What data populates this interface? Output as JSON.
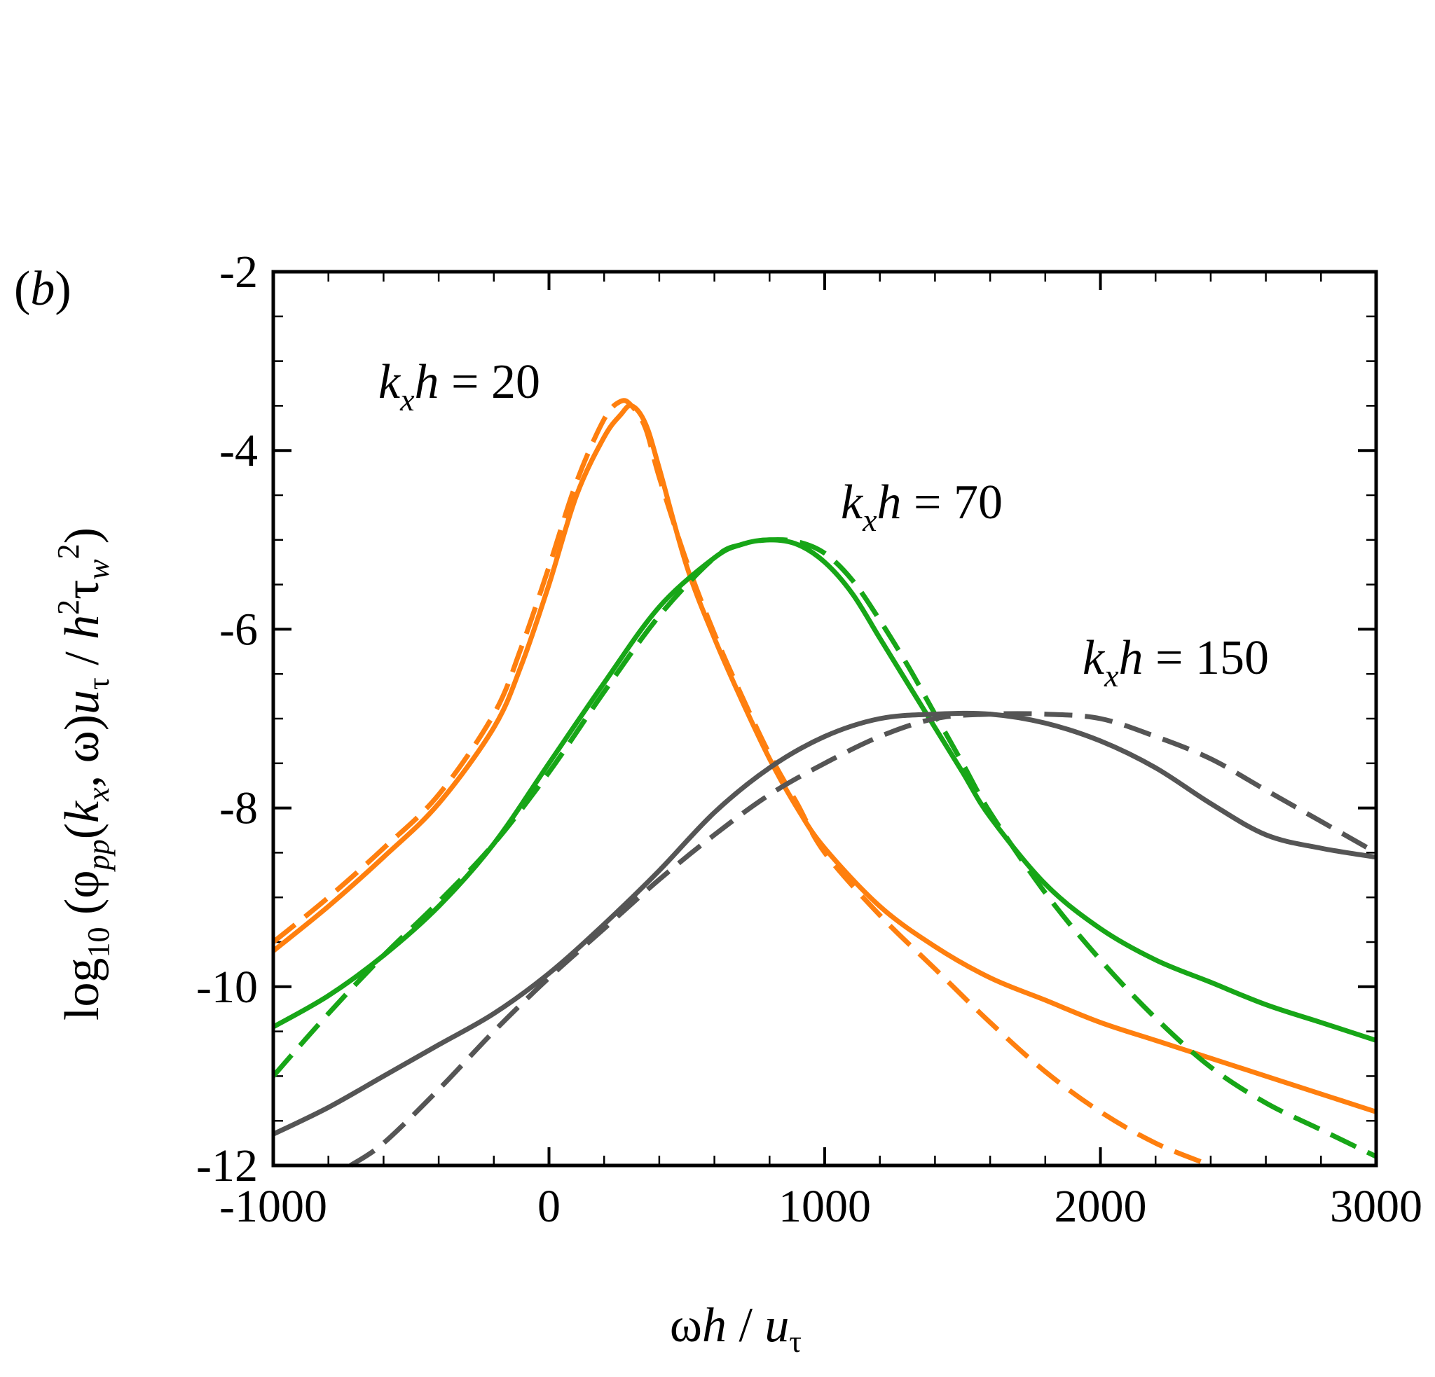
{
  "panel_label": {
    "open": "(",
    "letter": "b",
    "close": ")"
  },
  "colors": {
    "orange": "#ff7f0e",
    "green": "#17a617",
    "gray": "#555555"
  },
  "chart_data": {
    "type": "line",
    "title": "",
    "xlabel": {
      "omega": "ω",
      "h": "h",
      "slash": " / ",
      "u": "u",
      "tau": "τ"
    },
    "ylabel": {
      "log": "log",
      "base": "10",
      "open": " (",
      "phi": "φ",
      "pp": "pp",
      "mid": "(",
      "k": "k",
      "x": "x",
      "args": ", ω)",
      "u": "u",
      "tau": "τ",
      "slash": " / ",
      "h": "h",
      "two": "2",
      "tau2": "τ",
      "w": "w",
      "two2": "2",
      "close": ")"
    },
    "xlim": [
      -1000,
      3000
    ],
    "ylim": [
      -12,
      -2
    ],
    "xticks": [
      -1000,
      0,
      1000,
      2000,
      3000
    ],
    "xtick_labels": [
      "-1000",
      "0",
      "1000",
      "2000",
      "3000"
    ],
    "yticks": [
      -2,
      -4,
      -6,
      -8,
      -10,
      -12
    ],
    "ytick_labels": [
      "-2",
      "-4",
      "-6",
      "-8",
      "-10",
      "-12"
    ],
    "annotations": [
      {
        "k": "k",
        "x": "x",
        "h": "h",
        "text": " = 20",
        "color": "orange"
      },
      {
        "k": "k",
        "x": "x",
        "h": "h",
        "text": " = 70",
        "color": "green"
      },
      {
        "k": "k",
        "x": "x",
        "h": "h",
        "text": " = 150",
        "color": "gray"
      }
    ],
    "series": [
      {
        "name": "kx h = 20 (solid)",
        "style": "solid",
        "color": "#ff7f0e",
        "x": [
          -1000,
          -800,
          -600,
          -400,
          -200,
          -100,
          0,
          100,
          200,
          260,
          300,
          350,
          400,
          500,
          600,
          700,
          800,
          900,
          1000,
          1200,
          1400,
          1600,
          1800,
          2000,
          2200,
          2400,
          2600,
          2800,
          3000
        ],
        "y": [
          -9.6,
          -9.1,
          -8.55,
          -7.95,
          -7.1,
          -6.4,
          -5.5,
          -4.5,
          -3.85,
          -3.6,
          -3.5,
          -3.7,
          -4.2,
          -5.3,
          -6.1,
          -6.8,
          -7.45,
          -8.0,
          -8.45,
          -9.1,
          -9.55,
          -9.9,
          -10.15,
          -10.4,
          -10.6,
          -10.8,
          -11.0,
          -11.2,
          -11.4
        ]
      },
      {
        "name": "kx h = 20 (dashed)",
        "style": "dashed",
        "color": "#ff7f0e",
        "x": [
          -1000,
          -800,
          -600,
          -400,
          -200,
          -100,
          0,
          100,
          200,
          260,
          300,
          350,
          400,
          500,
          600,
          700,
          800,
          900,
          1000,
          1200,
          1400,
          1600,
          1800,
          2000,
          2200,
          2400
        ],
        "y": [
          -9.5,
          -9.0,
          -8.45,
          -7.85,
          -6.95,
          -6.2,
          -5.3,
          -4.35,
          -3.65,
          -3.45,
          -3.5,
          -3.75,
          -4.3,
          -5.25,
          -6.05,
          -6.75,
          -7.4,
          -7.95,
          -8.5,
          -9.2,
          -9.8,
          -10.4,
          -10.95,
          -11.4,
          -11.75,
          -12.0
        ]
      },
      {
        "name": "kx h = 70 (solid)",
        "style": "solid",
        "color": "#17a617",
        "x": [
          -1000,
          -800,
          -600,
          -400,
          -200,
          0,
          200,
          400,
          600,
          700,
          800,
          900,
          1000,
          1100,
          1200,
          1300,
          1400,
          1500,
          1600,
          1800,
          2000,
          2200,
          2400,
          2600,
          2800,
          3000
        ],
        "y": [
          -10.45,
          -10.1,
          -9.65,
          -9.1,
          -8.4,
          -7.5,
          -6.6,
          -5.75,
          -5.2,
          -5.05,
          -5.0,
          -5.05,
          -5.25,
          -5.6,
          -6.1,
          -6.6,
          -7.1,
          -7.6,
          -8.1,
          -8.85,
          -9.35,
          -9.7,
          -9.95,
          -10.2,
          -10.4,
          -10.6
        ]
      },
      {
        "name": "kx h = 70 (dashed)",
        "style": "dashed",
        "color": "#17a617",
        "x": [
          -1000,
          -800,
          -600,
          -400,
          -200,
          0,
          200,
          400,
          600,
          700,
          800,
          900,
          1000,
          1100,
          1200,
          1300,
          1400,
          1500,
          1600,
          1800,
          2000,
          2200,
          2400,
          2600,
          2800,
          3000
        ],
        "y": [
          -11.0,
          -10.3,
          -9.65,
          -9.05,
          -8.4,
          -7.6,
          -6.7,
          -5.85,
          -5.2,
          -5.05,
          -5.0,
          -5.02,
          -5.15,
          -5.45,
          -5.9,
          -6.4,
          -6.95,
          -7.5,
          -8.05,
          -8.95,
          -9.7,
          -10.35,
          -10.9,
          -11.3,
          -11.6,
          -11.9
        ]
      },
      {
        "name": "kx h = 150 (solid)",
        "style": "solid",
        "color": "#555555",
        "x": [
          -1000,
          -800,
          -600,
          -400,
          -200,
          0,
          200,
          400,
          600,
          800,
          1000,
          1200,
          1400,
          1600,
          1800,
          2000,
          2200,
          2400,
          2600,
          2800,
          3000
        ],
        "y": [
          -11.65,
          -11.35,
          -11.0,
          -10.65,
          -10.3,
          -9.85,
          -9.3,
          -8.7,
          -8.05,
          -7.55,
          -7.2,
          -7.0,
          -6.95,
          -6.95,
          -7.05,
          -7.25,
          -7.55,
          -7.95,
          -8.3,
          -8.45,
          -8.55
        ]
      },
      {
        "name": "kx h = 150 (dashed)",
        "style": "dashed",
        "color": "#555555",
        "x": [
          -720,
          -600,
          -400,
          -200,
          0,
          200,
          400,
          600,
          800,
          1000,
          1200,
          1400,
          1600,
          1800,
          2000,
          2200,
          2400,
          2600,
          2800,
          3000
        ],
        "y": [
          -12.0,
          -11.75,
          -11.15,
          -10.5,
          -9.9,
          -9.35,
          -8.8,
          -8.3,
          -7.85,
          -7.5,
          -7.2,
          -7.0,
          -6.95,
          -6.95,
          -7.0,
          -7.2,
          -7.45,
          -7.8,
          -8.15,
          -8.5
        ]
      }
    ]
  }
}
